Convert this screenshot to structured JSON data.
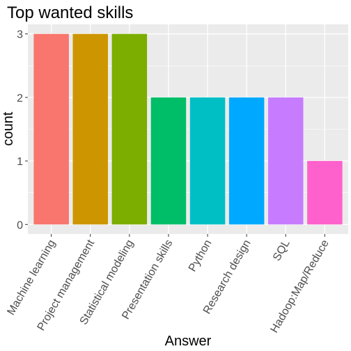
{
  "chart_data": {
    "type": "bar",
    "title": "Top wanted skills",
    "xlabel": "Answer",
    "ylabel": "count",
    "categories": [
      "Machine learning",
      "Project management",
      "Statistical modeling",
      "Presentation skills",
      "Python",
      "Research design",
      "SQL",
      "Hadoop:Map/Reduce"
    ],
    "values": [
      3,
      3,
      3,
      2,
      2,
      2,
      2,
      1
    ],
    "colors": [
      "#F8766D",
      "#CD9600",
      "#7CAE00",
      "#00BE67",
      "#00BFC4",
      "#00A9FF",
      "#C77CFF",
      "#FF61CC"
    ],
    "yticks": [
      0,
      1,
      2,
      3
    ],
    "ylim": [
      -0.15,
      3.15
    ],
    "grid": true,
    "panel_background": "#EBEBEB",
    "grid_color": "#FFFFFF"
  }
}
